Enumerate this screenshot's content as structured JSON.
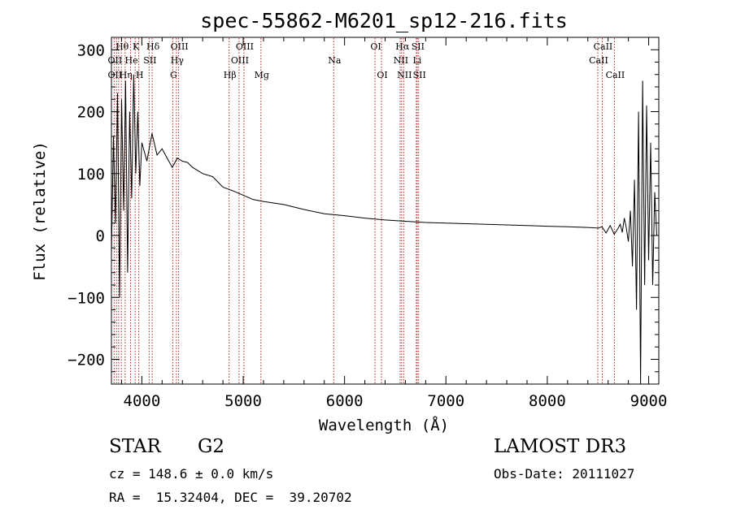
{
  "chart_data": {
    "type": "line",
    "title": "spec-55862-M6201_sp12-216.fits",
    "xlabel": "Wavelength (Å)",
    "ylabel": "Flux (relative)",
    "xlim": [
      3700,
      9100
    ],
    "ylim": [
      -240,
      320
    ],
    "xticks": [
      4000,
      5000,
      6000,
      7000,
      8000,
      9000
    ],
    "yticks": [
      -200,
      -100,
      0,
      100,
      200,
      300
    ],
    "series": [
      {
        "name": "spectrum",
        "x": [
          3700,
          3720,
          3740,
          3760,
          3780,
          3800,
          3820,
          3840,
          3860,
          3880,
          3900,
          3920,
          3940,
          3960,
          3980,
          4000,
          4050,
          4100,
          4150,
          4200,
          4250,
          4300,
          4350,
          4400,
          4450,
          4500,
          4600,
          4700,
          4800,
          4850,
          4900,
          5000,
          5100,
          5200,
          5400,
          5600,
          5800,
          6000,
          6200,
          6400,
          6600,
          6800,
          7000,
          7200,
          7400,
          7600,
          7800,
          8000,
          8200,
          8400,
          8500,
          8540,
          8580,
          8620,
          8660,
          8700,
          8720,
          8740,
          8760,
          8780,
          8800,
          8820,
          8840,
          8860,
          8880,
          8900,
          8920,
          8940,
          8960,
          8980,
          9000,
          9020,
          9040,
          9060,
          9080
        ],
        "values": [
          -30,
          160,
          20,
          230,
          -100,
          220,
          40,
          250,
          -60,
          200,
          60,
          260,
          100,
          200,
          80,
          150,
          120,
          165,
          130,
          140,
          125,
          110,
          125,
          120,
          118,
          110,
          100,
          95,
          78,
          75,
          72,
          65,
          58,
          55,
          50,
          42,
          35,
          32,
          28,
          25,
          23,
          21,
          20,
          19,
          18,
          17,
          16,
          15,
          14,
          13,
          12,
          14,
          4,
          16,
          2,
          12,
          18,
          5,
          28,
          12,
          -10,
          40,
          -50,
          90,
          -120,
          200,
          -240,
          250,
          -80,
          210,
          -40,
          150,
          -80,
          70,
          0
        ]
      }
    ],
    "lines": {
      "color": "#b22222",
      "wavelengths": [
        3727,
        3750,
        3771,
        3798,
        3835,
        3889,
        3934,
        3970,
        4072,
        4102,
        4305,
        4341,
        4363,
        4861,
        4959,
        5007,
        5175,
        5893,
        6300,
        6364,
        6548,
        6563,
        6583,
        6708,
        6716,
        6731,
        8498,
        8542,
        8662
      ]
    },
    "line_labels": [
      {
        "text": "Hθ",
        "wl": 3798,
        "row": 1
      },
      {
        "text": "K",
        "wl": 3934,
        "row": 1
      },
      {
        "text": "Hδ",
        "wl": 4102,
        "row": 1
      },
      {
        "text": "OIII",
        "wl": 4363,
        "row": 1
      },
      {
        "text": "OIII",
        "wl": 5007,
        "row": 1
      },
      {
        "text": "OI",
        "wl": 6300,
        "row": 1
      },
      {
        "text": "Hα",
        "wl": 6563,
        "row": 1
      },
      {
        "text": "SII",
        "wl": 6716,
        "row": 1
      },
      {
        "text": "CaII",
        "wl": 8542,
        "row": 1
      },
      {
        "text": "OII",
        "wl": 3727,
        "row": 2
      },
      {
        "text": "He",
        "wl": 3889,
        "row": 2
      },
      {
        "text": "SII",
        "wl": 4072,
        "row": 2
      },
      {
        "text": "Hγ",
        "wl": 4341,
        "row": 2
      },
      {
        "text": "OIII",
        "wl": 4959,
        "row": 2
      },
      {
        "text": "Na",
        "wl": 5893,
        "row": 2
      },
      {
        "text": "NII",
        "wl": 6548,
        "row": 2
      },
      {
        "text": "Li",
        "wl": 6708,
        "row": 2
      },
      {
        "text": "CaII",
        "wl": 8498,
        "row": 2
      },
      {
        "text": "OII",
        "wl": 3727,
        "row": 3
      },
      {
        "text": "Hη",
        "wl": 3835,
        "row": 3
      },
      {
        "text": "H",
        "wl": 3970,
        "row": 3
      },
      {
        "text": "G",
        "wl": 4305,
        "row": 3
      },
      {
        "text": "Hβ",
        "wl": 4861,
        "row": 3
      },
      {
        "text": "Mg",
        "wl": 5175,
        "row": 3
      },
      {
        "text": "OI",
        "wl": 6364,
        "row": 3
      },
      {
        "text": "NII",
        "wl": 6583,
        "row": 3
      },
      {
        "text": "SII",
        "wl": 6731,
        "row": 3
      },
      {
        "text": "CaII",
        "wl": 8662,
        "row": 3
      }
    ]
  },
  "info": {
    "class_label": "STAR",
    "subclass": "G2",
    "survey": "LAMOST DR3",
    "cz": "cz = 148.6 ± 0.0 km/s",
    "obs_date": "Obs-Date: 20111027",
    "coords": "RA =  15.32404, DEC =  39.20702"
  }
}
